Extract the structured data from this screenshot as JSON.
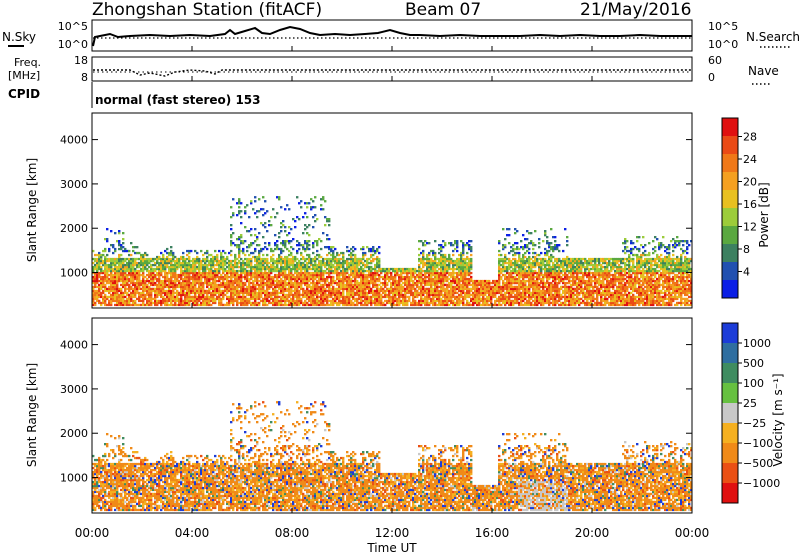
{
  "header": {
    "station": "Zhongshan Station (fitACF)",
    "beam": "Beam 07",
    "date": "21/May/2016"
  },
  "top_panels": {
    "nsky_label": "N.Sky",
    "nsky_ticks": [
      "10^5",
      "10^0"
    ],
    "nsearch_label": "N.Search",
    "nsearch_ticks": [
      "10^5",
      "10^0"
    ],
    "freq_label_1": "Freq.",
    "freq_label_2": "[MHz]",
    "freq_ticks": [
      "18",
      "8"
    ],
    "nave_label": "Nave",
    "nave_ticks": [
      "60",
      "0"
    ],
    "cpid_label": "CPID",
    "cpid_text": "normal (fast stereo) 153"
  },
  "chart_data": [
    {
      "type": "heatmap",
      "panel": "power",
      "ylabel": "Slant Range [km]",
      "yticks": [
        "1000",
        "2000",
        "3000",
        "4000"
      ],
      "ylim": [
        200,
        4600
      ],
      "xlim": [
        0,
        24
      ],
      "colorbar_label": "Power [dB]",
      "colorbar_ticks": [
        "4",
        "8",
        "12",
        "16",
        "20",
        "24",
        "28"
      ],
      "colorbar_colors": [
        "#0b1fe6",
        "#2150b0",
        "#3c8060",
        "#5aa840",
        "#9ccc3a",
        "#e8c020",
        "#f5a020",
        "#f07818",
        "#ea4a16",
        "#e01010"
      ]
    },
    {
      "type": "heatmap",
      "panel": "velocity",
      "ylabel": "Slant Range [km]",
      "yticks": [
        "1000",
        "2000",
        "3000",
        "4000"
      ],
      "ylim": [
        200,
        4600
      ],
      "xlim": [
        0,
        24
      ],
      "xlabel": "Time UT",
      "xticks": [
        "00:00",
        "04:00",
        "08:00",
        "12:00",
        "16:00",
        "20:00",
        "00:00"
      ],
      "colorbar_label": "Velocity [m s⁻¹]",
      "colorbar_ticks": [
        "1000",
        "500",
        "100",
        "25",
        "−25",
        "−100",
        "−500",
        "−1000"
      ],
      "colorbar_colors": [
        "#1c3cd8",
        "#2f6ea0",
        "#3f8c60",
        "#66c040",
        "#c8c8c8",
        "#f5b020",
        "#f08a18",
        "#ea5014",
        "#e01010"
      ]
    }
  ],
  "colors": {
    "ground_scatter": "#c8c8c8",
    "axis": "#000000"
  }
}
